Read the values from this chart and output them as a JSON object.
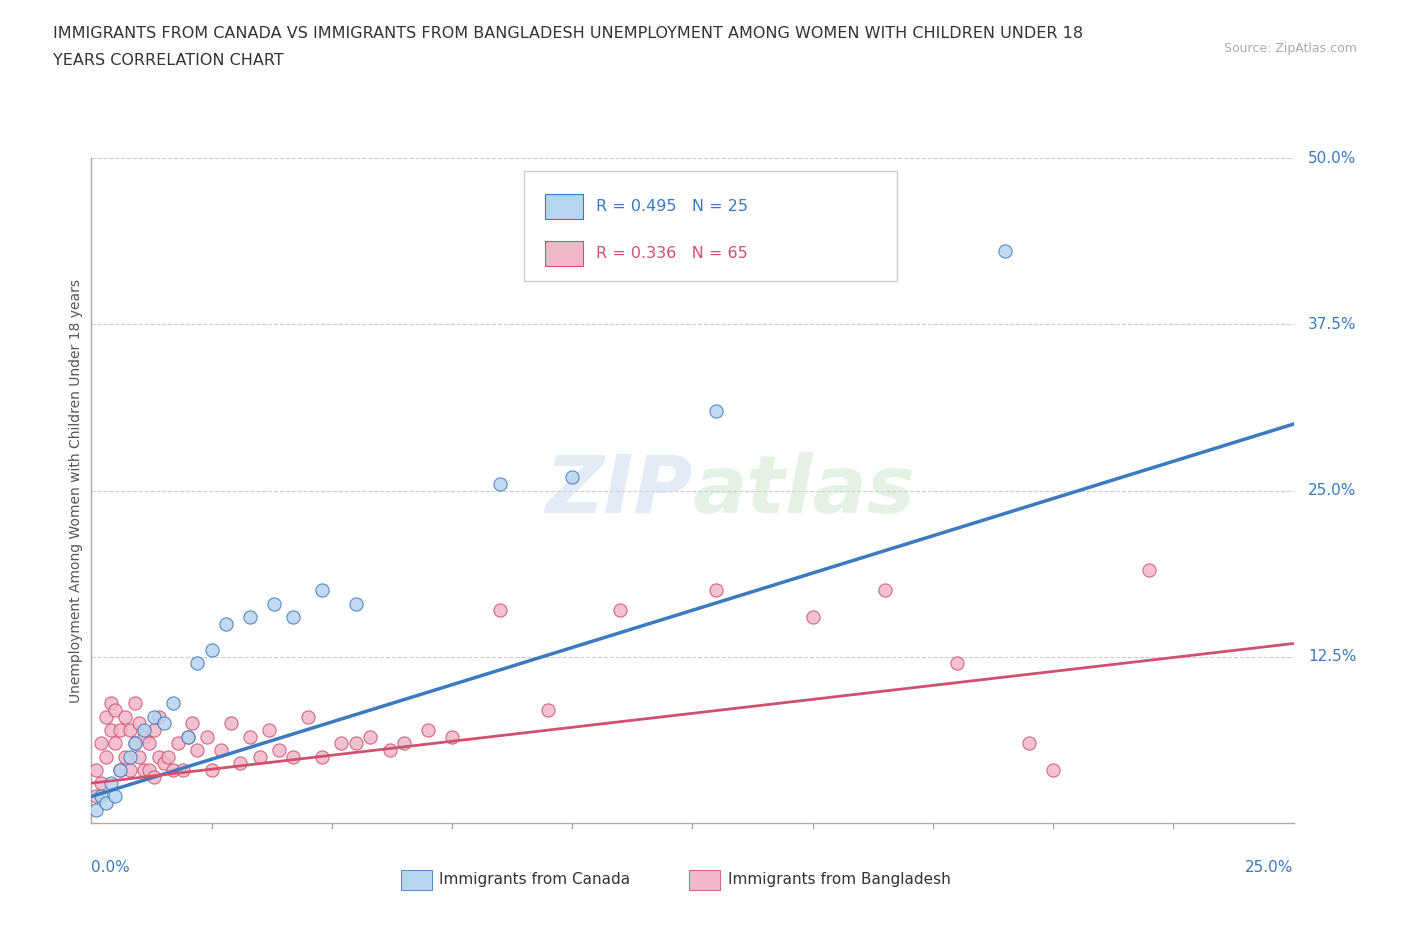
{
  "title_line1": "IMMIGRANTS FROM CANADA VS IMMIGRANTS FROM BANGLADESH UNEMPLOYMENT AMONG WOMEN WITH CHILDREN UNDER 18",
  "title_line2": "YEARS CORRELATION CHART",
  "source": "Source: ZipAtlas.com",
  "ylabel": "Unemployment Among Women with Children Under 18 years",
  "canada_R": 0.495,
  "canada_N": 25,
  "bangladesh_R": 0.336,
  "bangladesh_N": 65,
  "canada_color": "#b8d4f0",
  "canada_line_color": "#3a7abf",
  "bangladesh_color": "#f0b8c8",
  "bangladesh_line_color": "#d05070",
  "canada_points_x": [
    0.001,
    0.002,
    0.003,
    0.004,
    0.005,
    0.006,
    0.008,
    0.009,
    0.011,
    0.013,
    0.015,
    0.017,
    0.02,
    0.022,
    0.025,
    0.028,
    0.033,
    0.038,
    0.042,
    0.048,
    0.055,
    0.085,
    0.1,
    0.13,
    0.19
  ],
  "canada_points_y": [
    0.01,
    0.02,
    0.015,
    0.03,
    0.02,
    0.04,
    0.05,
    0.06,
    0.07,
    0.08,
    0.075,
    0.09,
    0.065,
    0.12,
    0.13,
    0.15,
    0.155,
    0.165,
    0.155,
    0.175,
    0.165,
    0.255,
    0.26,
    0.31,
    0.43
  ],
  "bangladesh_points_x": [
    0.001,
    0.001,
    0.002,
    0.002,
    0.003,
    0.003,
    0.004,
    0.004,
    0.005,
    0.005,
    0.006,
    0.006,
    0.007,
    0.007,
    0.008,
    0.008,
    0.009,
    0.009,
    0.01,
    0.01,
    0.011,
    0.011,
    0.012,
    0.012,
    0.013,
    0.013,
    0.014,
    0.014,
    0.015,
    0.016,
    0.017,
    0.018,
    0.019,
    0.02,
    0.021,
    0.022,
    0.024,
    0.025,
    0.027,
    0.029,
    0.031,
    0.033,
    0.035,
    0.037,
    0.039,
    0.042,
    0.045,
    0.048,
    0.052,
    0.055,
    0.058,
    0.062,
    0.065,
    0.07,
    0.075,
    0.085,
    0.095,
    0.11,
    0.13,
    0.15,
    0.165,
    0.18,
    0.2,
    0.22,
    0.195
  ],
  "bangladesh_points_y": [
    0.02,
    0.04,
    0.03,
    0.06,
    0.05,
    0.08,
    0.07,
    0.09,
    0.06,
    0.085,
    0.04,
    0.07,
    0.05,
    0.08,
    0.04,
    0.07,
    0.06,
    0.09,
    0.05,
    0.075,
    0.04,
    0.065,
    0.04,
    0.06,
    0.035,
    0.07,
    0.05,
    0.08,
    0.045,
    0.05,
    0.04,
    0.06,
    0.04,
    0.065,
    0.075,
    0.055,
    0.065,
    0.04,
    0.055,
    0.075,
    0.045,
    0.065,
    0.05,
    0.07,
    0.055,
    0.05,
    0.08,
    0.05,
    0.06,
    0.06,
    0.065,
    0.055,
    0.06,
    0.07,
    0.065,
    0.16,
    0.085,
    0.16,
    0.175,
    0.155,
    0.175,
    0.12,
    0.04,
    0.19,
    0.06
  ],
  "canada_line_x0": 0.0,
  "canada_line_y0": 0.02,
  "canada_line_x1": 0.25,
  "canada_line_y1": 0.3,
  "bangladesh_line_x0": 0.0,
  "bangladesh_line_y0": 0.03,
  "bangladesh_line_x1": 0.25,
  "bangladesh_line_y1": 0.135,
  "xmin": 0.0,
  "xmax": 0.25,
  "ymin": 0.0,
  "ymax": 0.5,
  "yticks": [
    0.0,
    0.125,
    0.25,
    0.375,
    0.5
  ],
  "ytick_labels": [
    "",
    "12.5%",
    "25.0%",
    "37.5%",
    "50.0%"
  ]
}
